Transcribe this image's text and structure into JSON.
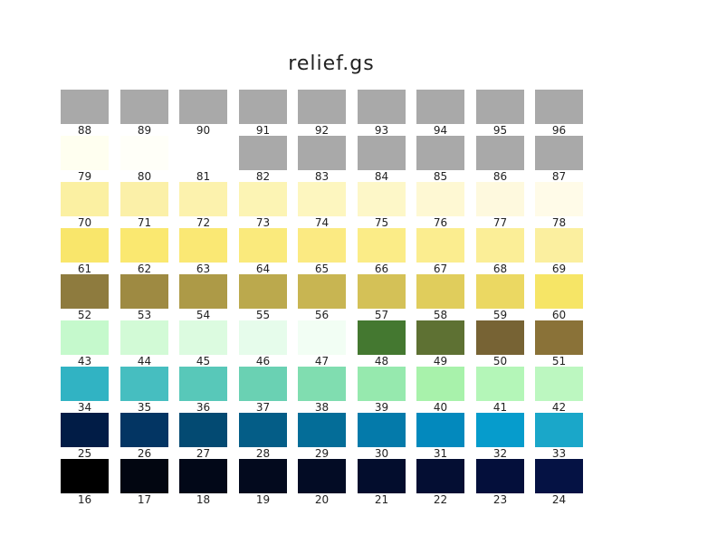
{
  "title": "relief.gs",
  "chart_data": {
    "type": "table",
    "title": "relief.gs",
    "rows": [
      [
        {
          "index": "88",
          "color": "#a9a9a9"
        },
        {
          "index": "89",
          "color": "#a9a9a9"
        },
        {
          "index": "90",
          "color": "#a9a9a9"
        },
        {
          "index": "91",
          "color": "#a9a9a9"
        },
        {
          "index": "92",
          "color": "#a9a9a9"
        },
        {
          "index": "93",
          "color": "#a9a9a9"
        },
        {
          "index": "94",
          "color": "#a9a9a9"
        },
        {
          "index": "95",
          "color": "#a9a9a9"
        },
        {
          "index": "96",
          "color": "#a9a9a9"
        }
      ],
      [
        {
          "index": "79",
          "color": "#fffff0"
        },
        {
          "index": "80",
          "color": "#fffff8"
        },
        {
          "index": "81",
          "color": "#ffffff"
        },
        {
          "index": "82",
          "color": "#a9a9a9"
        },
        {
          "index": "83",
          "color": "#a9a9a9"
        },
        {
          "index": "84",
          "color": "#a9a9a9"
        },
        {
          "index": "85",
          "color": "#a9a9a9"
        },
        {
          "index": "86",
          "color": "#a9a9a9"
        },
        {
          "index": "87",
          "color": "#a9a9a9"
        }
      ],
      [
        {
          "index": "70",
          "color": "#fbf0a2"
        },
        {
          "index": "71",
          "color": "#fbf0a8"
        },
        {
          "index": "72",
          "color": "#fcf2ad"
        },
        {
          "index": "73",
          "color": "#fcf4b4"
        },
        {
          "index": "74",
          "color": "#fdf6bf"
        },
        {
          "index": "75",
          "color": "#fdf7c8"
        },
        {
          "index": "76",
          "color": "#fef8d3"
        },
        {
          "index": "77",
          "color": "#fef9de"
        },
        {
          "index": "78",
          "color": "#fffbe8"
        }
      ],
      [
        {
          "index": "61",
          "color": "#f9e66b"
        },
        {
          "index": "62",
          "color": "#fae870"
        },
        {
          "index": "63",
          "color": "#fae874"
        },
        {
          "index": "64",
          "color": "#faea7c"
        },
        {
          "index": "65",
          "color": "#fbea82"
        },
        {
          "index": "66",
          "color": "#fbec87"
        },
        {
          "index": "67",
          "color": "#fbed8f"
        },
        {
          "index": "68",
          "color": "#fbee97"
        },
        {
          "index": "69",
          "color": "#fbef9f"
        }
      ],
      [
        {
          "index": "52",
          "color": "#8e7b3e"
        },
        {
          "index": "53",
          "color": "#9e8a42"
        },
        {
          "index": "54",
          "color": "#ad9a47"
        },
        {
          "index": "55",
          "color": "#bba94d"
        },
        {
          "index": "56",
          "color": "#c8b552"
        },
        {
          "index": "57",
          "color": "#d4c157"
        },
        {
          "index": "58",
          "color": "#e0cd5c"
        },
        {
          "index": "59",
          "color": "#ebd862"
        },
        {
          "index": "60",
          "color": "#f6e566"
        }
      ],
      [
        {
          "index": "43",
          "color": "#c5f9cc"
        },
        {
          "index": "44",
          "color": "#d2fad6"
        },
        {
          "index": "45",
          "color": "#dcfbe0"
        },
        {
          "index": "46",
          "color": "#e6fceb"
        },
        {
          "index": "47",
          "color": "#f2fef4"
        },
        {
          "index": "48",
          "color": "#447830"
        },
        {
          "index": "49",
          "color": "#5e7133"
        },
        {
          "index": "50",
          "color": "#776334"
        },
        {
          "index": "51",
          "color": "#8a7238"
        }
      ],
      [
        {
          "index": "34",
          "color": "#31b3c3"
        },
        {
          "index": "35",
          "color": "#46bec0"
        },
        {
          "index": "36",
          "color": "#58c8b9"
        },
        {
          "index": "37",
          "color": "#6ad1b3"
        },
        {
          "index": "38",
          "color": "#80ddb0"
        },
        {
          "index": "39",
          "color": "#96e9ae"
        },
        {
          "index": "40",
          "color": "#a8f2ab"
        },
        {
          "index": "41",
          "color": "#b4f6b8"
        },
        {
          "index": "42",
          "color": "#bcf7c0"
        }
      ],
      [
        {
          "index": "25",
          "color": "#011c46"
        },
        {
          "index": "26",
          "color": "#033563"
        },
        {
          "index": "27",
          "color": "#034a72"
        },
        {
          "index": "28",
          "color": "#045d87"
        },
        {
          "index": "29",
          "color": "#046d98"
        },
        {
          "index": "30",
          "color": "#047aaa"
        },
        {
          "index": "31",
          "color": "#0389bd"
        },
        {
          "index": "32",
          "color": "#069ccc"
        },
        {
          "index": "33",
          "color": "#1aa7c9"
        }
      ],
      [
        {
          "index": "16",
          "color": "#000000"
        },
        {
          "index": "17",
          "color": "#020611"
        },
        {
          "index": "18",
          "color": "#020818"
        },
        {
          "index": "19",
          "color": "#030a1e"
        },
        {
          "index": "20",
          "color": "#030c25"
        },
        {
          "index": "21",
          "color": "#030d2d"
        },
        {
          "index": "22",
          "color": "#040e33"
        },
        {
          "index": "23",
          "color": "#040f3b"
        },
        {
          "index": "24",
          "color": "#051244"
        }
      ]
    ]
  }
}
